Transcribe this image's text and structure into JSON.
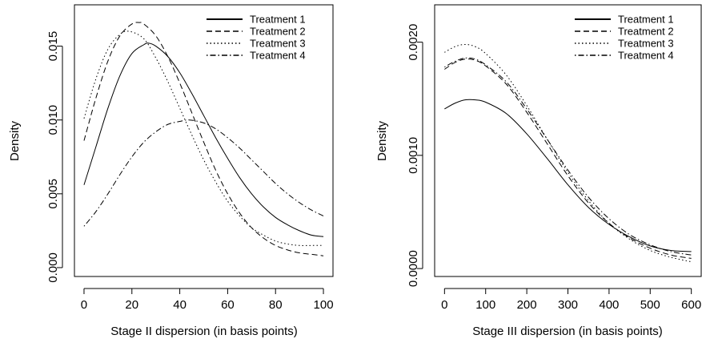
{
  "chart_data": [
    {
      "type": "line",
      "xlabel": "Stage II dispersion (in basis points)",
      "ylabel": "Density",
      "xlim": [
        -4,
        104
      ],
      "ylim": [
        -0.0006,
        0.0178
      ],
      "xticks": [
        0,
        20,
        40,
        60,
        80,
        100
      ],
      "xtick_labels": [
        "0",
        "20",
        "40",
        "60",
        "80",
        "100"
      ],
      "yticks": [
        0,
        0.005,
        0.01,
        0.015
      ],
      "ytick_labels": [
        "0.000",
        "0.005",
        "0.010",
        "0.015"
      ],
      "grid": false,
      "legend_position": "top-right",
      "series": [
        {
          "name": "Treatment 1",
          "dash": "solid",
          "x": [
            0,
            5,
            10,
            15,
            20,
            25,
            27,
            30,
            35,
            40,
            45,
            50,
            55,
            60,
            65,
            70,
            75,
            80,
            85,
            90,
            95,
            100
          ],
          "y": [
            0.0056,
            0.0082,
            0.0108,
            0.013,
            0.0145,
            0.0151,
            0.0152,
            0.015,
            0.0143,
            0.0132,
            0.0118,
            0.0103,
            0.0088,
            0.0074,
            0.0061,
            0.005,
            0.0041,
            0.0034,
            0.0029,
            0.0025,
            0.0022,
            0.0021
          ]
        },
        {
          "name": "Treatment 2",
          "dash": "dashed",
          "x": [
            0,
            5,
            10,
            15,
            20,
            23,
            25,
            30,
            35,
            40,
            45,
            50,
            55,
            60,
            65,
            70,
            75,
            80,
            85,
            90,
            95,
            100
          ],
          "y": [
            0.0086,
            0.0115,
            0.014,
            0.0157,
            0.0165,
            0.0166,
            0.0165,
            0.0157,
            0.0143,
            0.0125,
            0.0105,
            0.0085,
            0.0066,
            0.005,
            0.0037,
            0.0027,
            0.002,
            0.0015,
            0.0012,
            0.001,
            0.0009,
            0.0008
          ]
        },
        {
          "name": "Treatment 3",
          "dash": "dotted",
          "x": [
            0,
            5,
            10,
            15,
            19,
            25,
            30,
            35,
            40,
            45,
            50,
            55,
            60,
            65,
            70,
            75,
            80,
            85,
            90,
            95,
            100
          ],
          "y": [
            0.0101,
            0.0128,
            0.0148,
            0.0158,
            0.016,
            0.0155,
            0.0142,
            0.0126,
            0.0108,
            0.009,
            0.0073,
            0.0058,
            0.0045,
            0.0035,
            0.0027,
            0.0022,
            0.0018,
            0.0016,
            0.0015,
            0.0015,
            0.0015
          ]
        },
        {
          "name": "Treatment 4",
          "dash": "dotdash",
          "x": [
            0,
            5,
            10,
            15,
            20,
            25,
            30,
            35,
            40,
            44,
            50,
            55,
            60,
            65,
            70,
            75,
            80,
            85,
            90,
            95,
            100
          ],
          "y": [
            0.0028,
            0.0038,
            0.005,
            0.0063,
            0.0075,
            0.0085,
            0.0092,
            0.0097,
            0.0099,
            0.01,
            0.0098,
            0.0094,
            0.0088,
            0.0081,
            0.0073,
            0.0065,
            0.0057,
            0.005,
            0.0044,
            0.0039,
            0.0035
          ]
        }
      ]
    },
    {
      "type": "line",
      "xlabel": "Stage III dispersion (in basis points)",
      "ylabel": "Density",
      "xlim": [
        -24,
        624
      ],
      "ylim": [
        -7e-05,
        0.00233
      ],
      "xticks": [
        0,
        100,
        200,
        300,
        400,
        500,
        600
      ],
      "xtick_labels": [
        "0",
        "100",
        "200",
        "300",
        "400",
        "500",
        "600"
      ],
      "yticks": [
        0,
        0.001,
        0.002
      ],
      "ytick_labels": [
        "0.0000",
        "0.0010",
        "0.0020"
      ],
      "grid": false,
      "legend_position": "top-right",
      "series": [
        {
          "name": "Treatment 1",
          "dash": "solid",
          "x": [
            0,
            25,
            50,
            75,
            100,
            150,
            200,
            250,
            300,
            350,
            400,
            450,
            500,
            550,
            600
          ],
          "y": [
            0.00141,
            0.00146,
            0.00149,
            0.00149,
            0.00147,
            0.00137,
            0.00119,
            0.00097,
            0.00074,
            0.00054,
            0.00039,
            0.00028,
            0.0002,
            0.00016,
            0.00015
          ]
        },
        {
          "name": "Treatment 2",
          "dash": "dashed",
          "x": [
            0,
            25,
            50,
            75,
            100,
            150,
            200,
            250,
            300,
            350,
            400,
            450,
            500,
            550,
            600
          ],
          "y": [
            0.00176,
            0.00182,
            0.00185,
            0.00184,
            0.00179,
            0.00163,
            0.00138,
            0.0011,
            0.00082,
            0.00058,
            0.0004,
            0.00027,
            0.00018,
            0.00012,
            9e-05
          ]
        },
        {
          "name": "Treatment 3",
          "dash": "dotted",
          "x": [
            0,
            25,
            50,
            75,
            100,
            150,
            200,
            250,
            300,
            350,
            400,
            450,
            500,
            550,
            600
          ],
          "y": [
            0.00191,
            0.00196,
            0.00198,
            0.00196,
            0.0019,
            0.00171,
            0.00144,
            0.00114,
            0.00085,
            0.0006,
            0.0004,
            0.00026,
            0.00016,
            0.0001,
            6e-05
          ]
        },
        {
          "name": "Treatment 4",
          "dash": "dotdash",
          "x": [
            0,
            25,
            50,
            75,
            100,
            150,
            200,
            250,
            300,
            350,
            400,
            450,
            500,
            550,
            600
          ],
          "y": [
            0.00178,
            0.00183,
            0.00186,
            0.00185,
            0.0018,
            0.00165,
            0.00141,
            0.00114,
            0.00087,
            0.00063,
            0.00044,
            0.0003,
            0.00021,
            0.00015,
            0.00012
          ]
        }
      ]
    }
  ]
}
